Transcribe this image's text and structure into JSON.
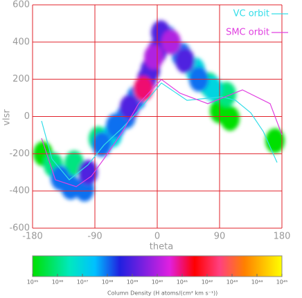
{
  "chart_data": {
    "type": "density-orbit",
    "xlabel": "theta",
    "ylabel": "vlsr",
    "xlim": [
      -180,
      180
    ],
    "xticks": [
      -180,
      -90,
      0,
      90,
      180
    ],
    "ylim": [
      -600,
      600
    ],
    "yticks": [
      -600,
      -400,
      -200,
      0,
      200,
      400,
      600
    ],
    "grid": true,
    "grid_color": "#e0202a",
    "legend": "upper right",
    "series": [
      {
        "name": "VC orbit",
        "color": "#33dde8",
        "x": [
          -167,
          -152,
          -127,
          -100,
          -77,
          -50,
          -27,
          6,
          43,
          93,
          113,
          135,
          153,
          173
        ],
        "values": [
          -24,
          -228,
          -340,
          -260,
          -154,
          -60,
          32,
          180,
          87,
          106,
          87,
          20,
          -80,
          -247
        ]
      },
      {
        "name": "SMC orbit",
        "color": "#e040e0",
        "x": [
          -167,
          -147,
          -117,
          -95,
          -77,
          -50,
          -27,
          6,
          33,
          73,
          123,
          163,
          180
        ],
        "values": [
          -117,
          -340,
          -377,
          -320,
          -228,
          -80,
          69,
          199,
          125,
          69,
          143,
          69,
          -98
        ]
      }
    ],
    "density": {
      "x": [
        -165,
        -150,
        -140,
        -125,
        -120,
        -105,
        -100,
        -85,
        -80,
        -65,
        -60,
        -45,
        -40,
        -30,
        -20,
        -15,
        -10,
        -5,
        0,
        5,
        15,
        20,
        35,
        40,
        55,
        60,
        75,
        80,
        100,
        90,
        105,
        170
      ],
      "y": [
        -200,
        -260,
        -330,
        -380,
        -250,
        -390,
        -300,
        -120,
        -150,
        -100,
        -50,
        0,
        50,
        100,
        150,
        200,
        250,
        320,
        350,
        450,
        420,
        400,
        330,
        300,
        250,
        200,
        170,
        150,
        120,
        30,
        -10,
        -130
      ],
      "values": [
        1e+35,
        1e+36,
        1e+38,
        1e+38,
        1e+36,
        1e+38,
        1e+39,
        1e+36,
        1e+38,
        1e+37,
        1e+38,
        1e+38,
        1e+39,
        1e+38,
        1e+41,
        1e+39,
        1e+39,
        1e+40,
        1e+39,
        1e+39,
        1e+38,
        1e+40,
        1e+38,
        1e+39,
        1e+37,
        1e+38,
        1e+36,
        1e+37,
        1e+36,
        1e+35,
        1e+35,
        1e+35
      ]
    },
    "colorbar": {
      "label": "Column Density (H atoms/(cm² km s⁻¹))",
      "log": true,
      "clim": [
        1e+35,
        1e+45
      ],
      "ticks": [
        {
          "value": 1e+35,
          "label": "10³⁵"
        },
        {
          "value": 1e+36,
          "label": "10³⁶"
        },
        {
          "value": 1e+37,
          "label": "10³⁷"
        },
        {
          "value": 1e+38,
          "label": "10³⁸"
        },
        {
          "value": 1e+39,
          "label": "10³⁹"
        },
        {
          "value": 1e+40,
          "label": "10⁴⁰"
        },
        {
          "value": 1e+41,
          "label": "10⁴¹"
        },
        {
          "value": 1e+42,
          "label": "10⁴²"
        },
        {
          "value": 1e+43,
          "label": "10⁴³"
        },
        {
          "value": 1e+44,
          "label": "10⁴⁴"
        },
        {
          "value": 1e+45,
          "label": "10⁴⁵"
        }
      ]
    }
  }
}
